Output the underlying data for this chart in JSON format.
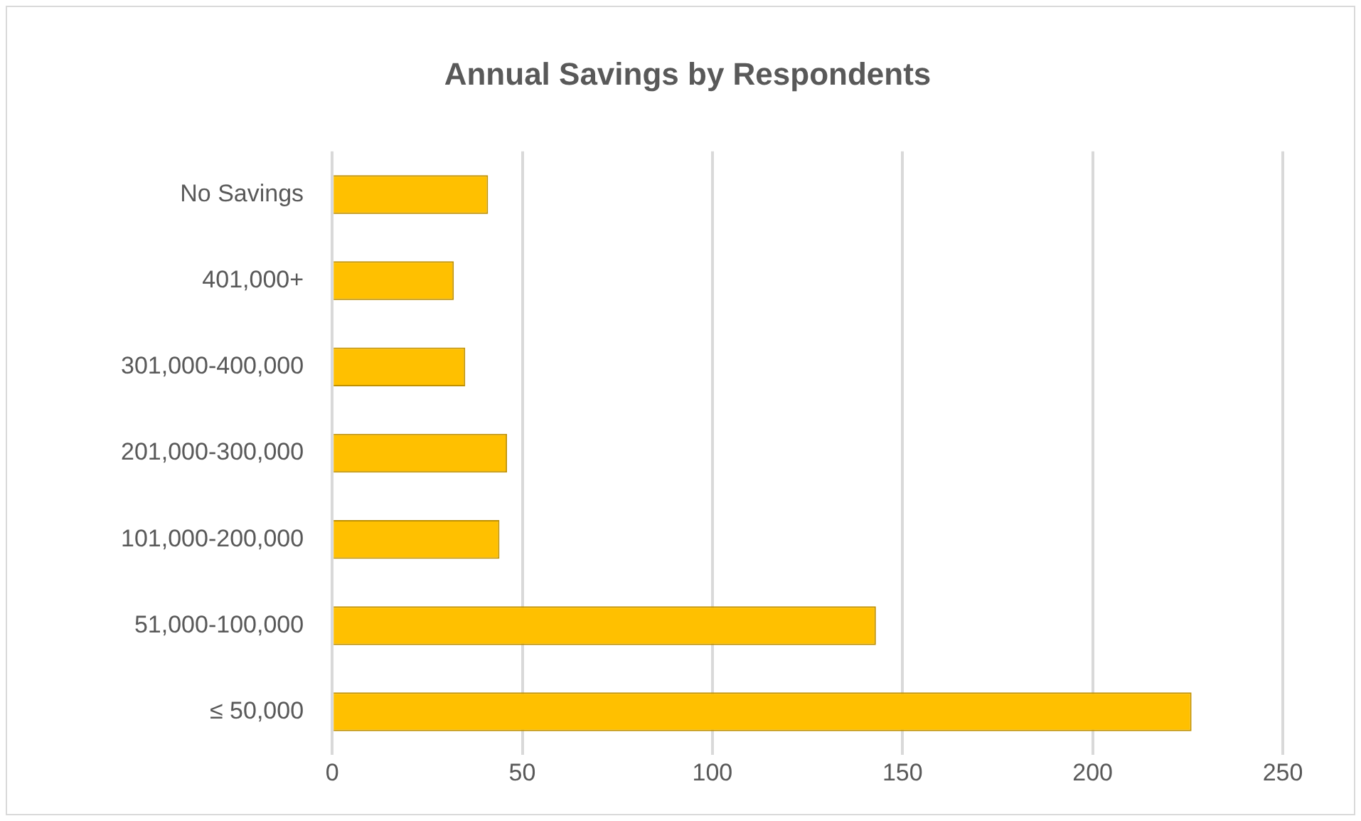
{
  "chart_data": {
    "type": "bar",
    "orientation": "horizontal",
    "title": "Annual Savings by Respondents",
    "categories": [
      "No Savings",
      "401,000+",
      "301,000-400,000",
      "201,000-300,000",
      "101,000-200,000",
      "51,000-100,000",
      "≤ 50,000"
    ],
    "values": [
      41,
      32,
      35,
      46,
      44,
      143,
      226
    ],
    "color": "#ffc000",
    "xlim": [
      0,
      250
    ],
    "xticks": [
      0,
      50,
      100,
      150,
      200,
      250
    ],
    "grid": "x",
    "legend": false
  }
}
